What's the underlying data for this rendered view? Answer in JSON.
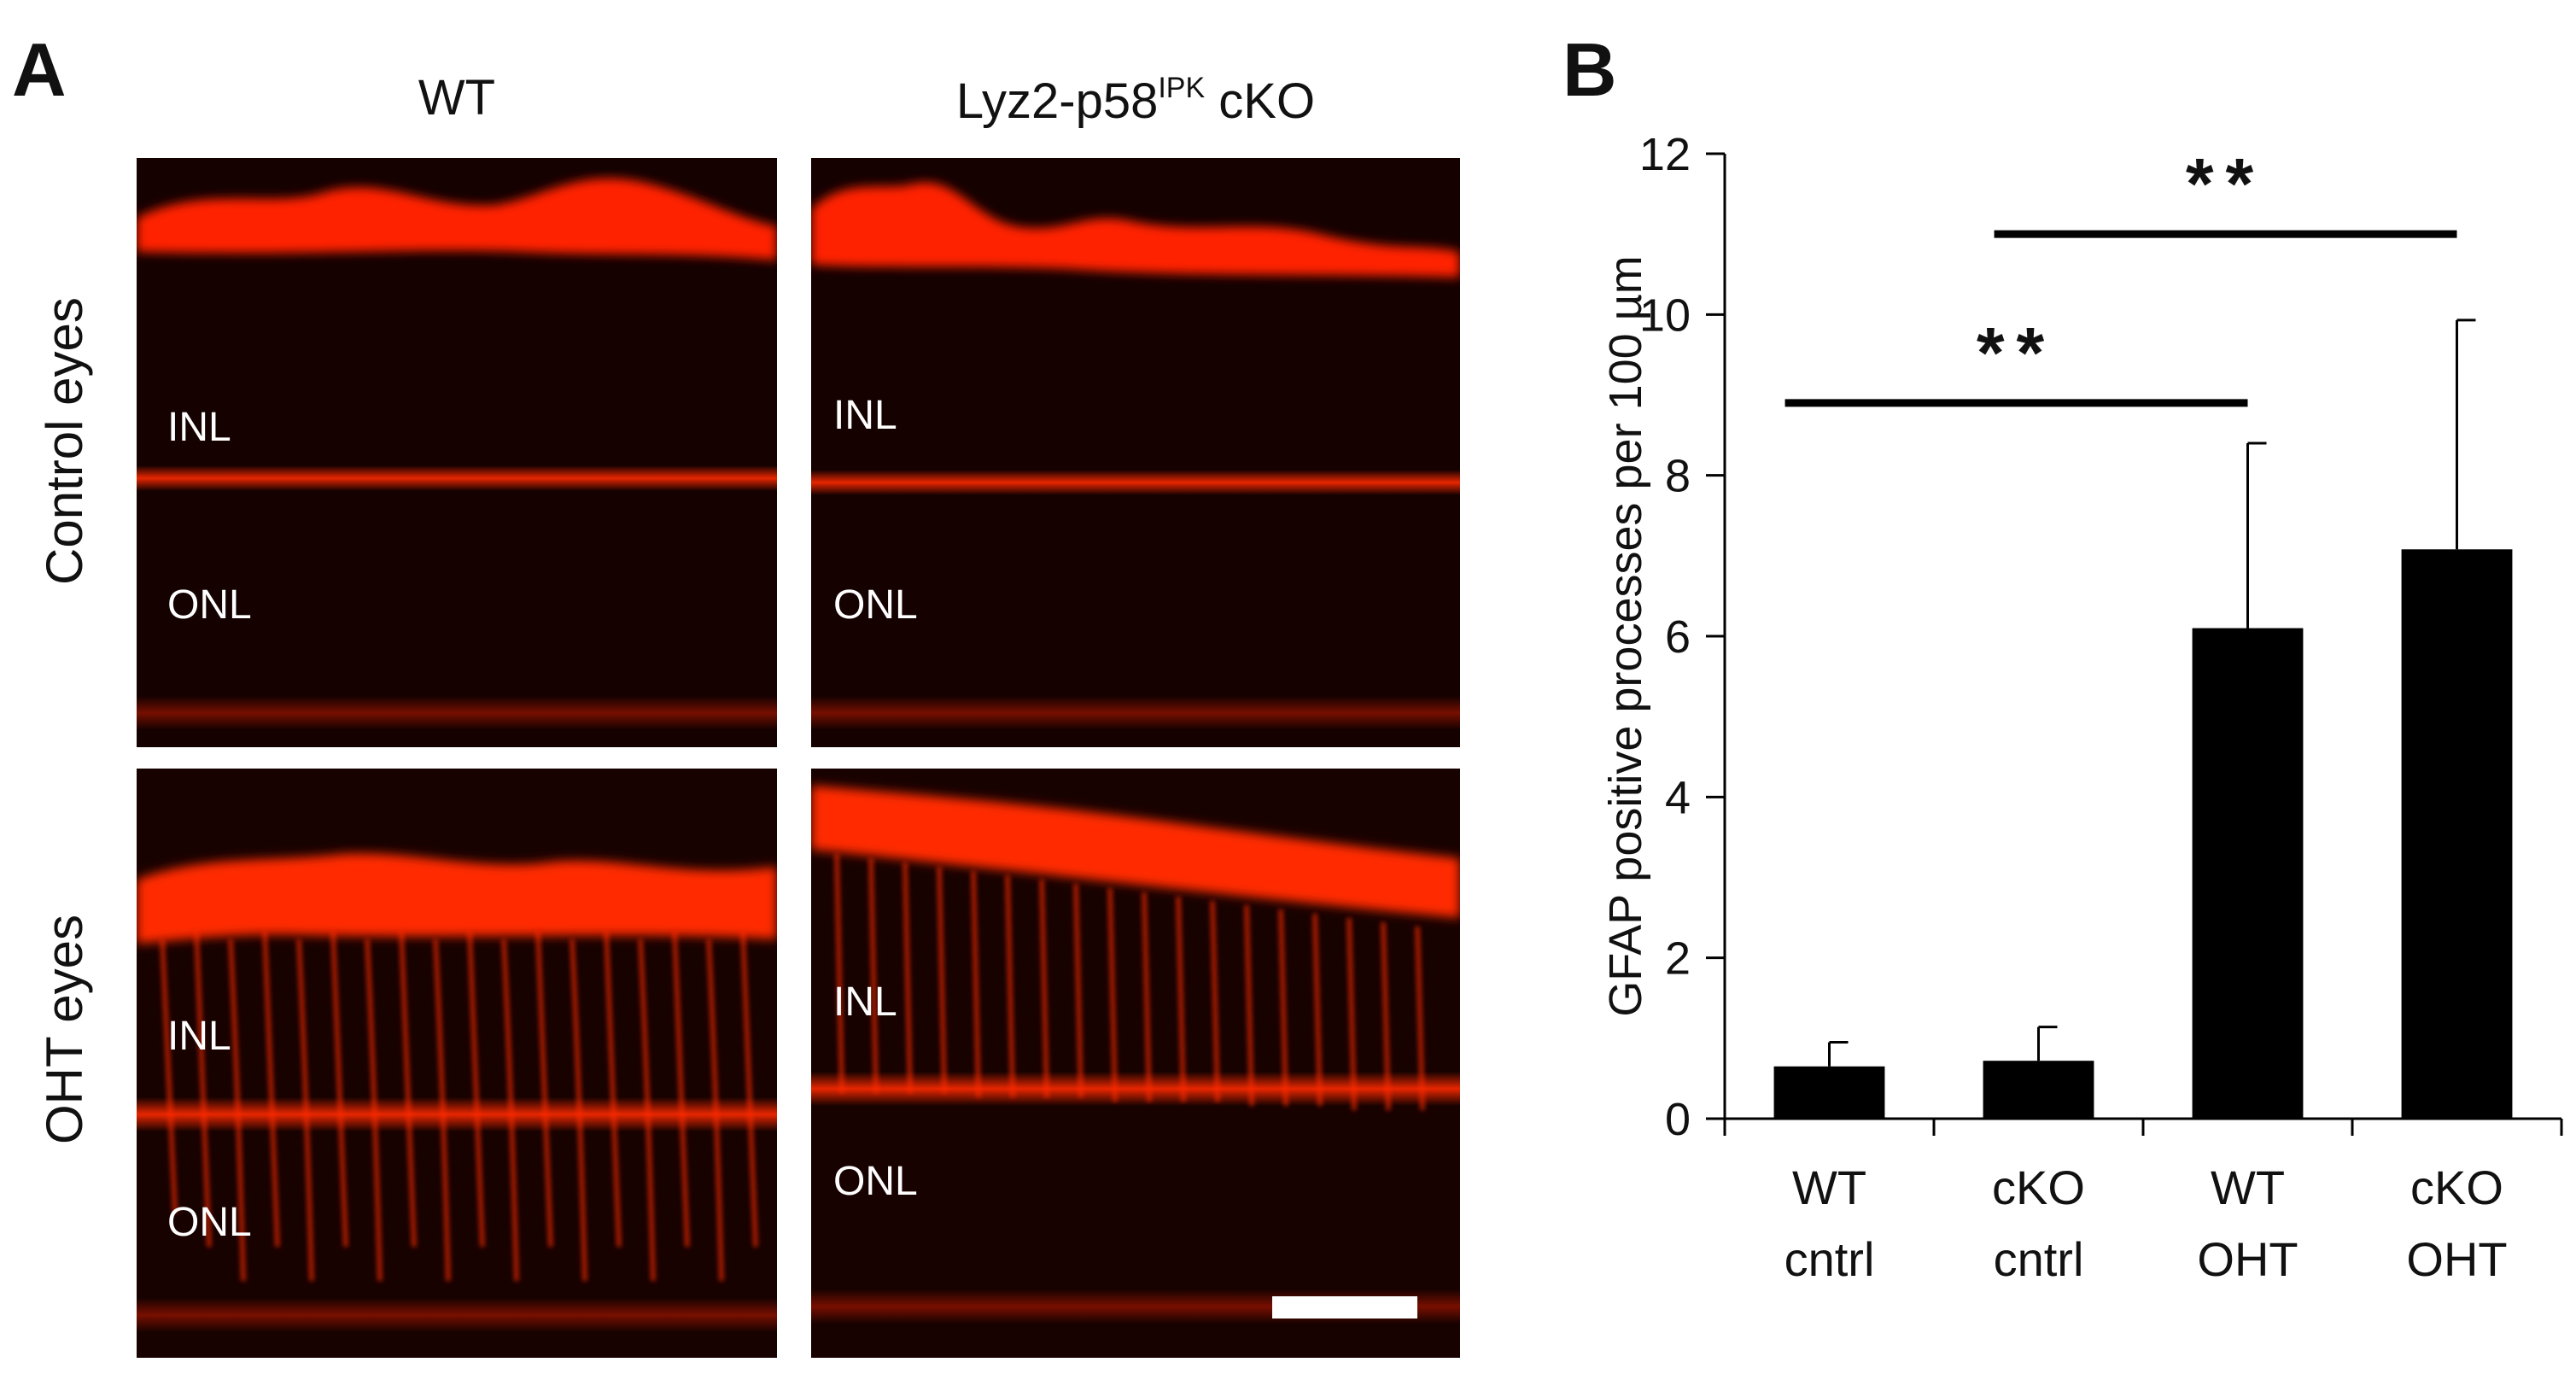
{
  "panel_a": {
    "letter": "A",
    "columns": [
      {
        "label": "WT",
        "sup": ""
      },
      {
        "label": "Lyz2-p58",
        "sup": "IPK",
        "suffix": " cKO"
      }
    ],
    "rows": [
      "Control eyes",
      "OHT eyes"
    ],
    "layer_labels": {
      "inl": "INL",
      "onl": "ONL"
    },
    "stain_color": "#ff2a00"
  },
  "panel_b": {
    "letter": "B"
  },
  "chart_data": {
    "type": "bar",
    "categories": [
      [
        "WT",
        "cntrl"
      ],
      [
        "cKO",
        "cntrl"
      ],
      [
        "WT",
        "OHT"
      ],
      [
        "cKO",
        "OHT"
      ]
    ],
    "values": [
      0.65,
      0.72,
      6.1,
      7.08
    ],
    "error_up": [
      0.3,
      0.42,
      2.3,
      2.85
    ],
    "ylabel": "GFAP positive processes per 100 µm",
    "ylim": [
      0,
      12
    ],
    "yticks": [
      0,
      2,
      4,
      6,
      8,
      10,
      12
    ],
    "bar_color": "#000000",
    "significance": [
      {
        "from": 0,
        "to": 2,
        "label": "**",
        "y": 8.9
      },
      {
        "from": 1,
        "to": 3,
        "label": "**",
        "y": 11.0
      }
    ],
    "grid": false,
    "legend": "none"
  }
}
